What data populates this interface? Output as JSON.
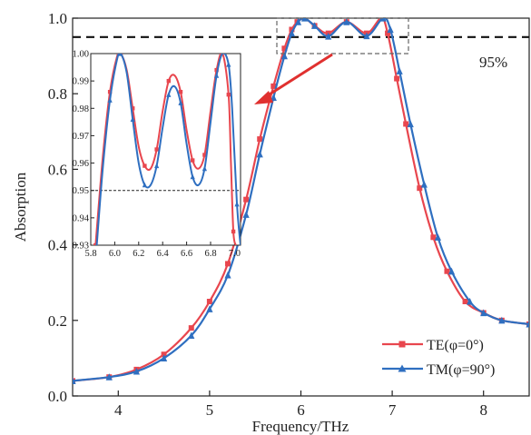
{
  "chart_data": {
    "type": "line",
    "xlabel": "Frequency/THz",
    "ylabel": "Absorption",
    "xlim": [
      3.5,
      8.5
    ],
    "ylim": [
      0.0,
      1.0
    ],
    "x_ticks": [
      "4",
      "5",
      "6",
      "7",
      "8"
    ],
    "y_ticks": [
      "0.0",
      "0.2",
      "0.4",
      "0.6",
      "0.8",
      "1.0"
    ],
    "threshold": {
      "value": 0.95,
      "label": "95%"
    },
    "legend_position": "bottom-right",
    "series": [
      {
        "name": "TE(φ=0°)",
        "color": "#e8464e",
        "marker": "square",
        "x": [
          3.5,
          3.9,
          4.2,
          4.5,
          4.8,
          5.0,
          5.2,
          5.4,
          5.55,
          5.7,
          5.82,
          5.9,
          5.96,
          6.04,
          6.15,
          6.3,
          6.5,
          6.72,
          6.88,
          6.95,
          7.05,
          7.15,
          7.3,
          7.45,
          7.6,
          7.8,
          8.0,
          8.2,
          8.5
        ],
        "y": [
          0.04,
          0.05,
          0.07,
          0.11,
          0.18,
          0.25,
          0.35,
          0.52,
          0.68,
          0.82,
          0.92,
          0.97,
          0.99,
          1.0,
          0.98,
          0.96,
          0.99,
          0.96,
          1.0,
          0.96,
          0.84,
          0.72,
          0.55,
          0.42,
          0.33,
          0.25,
          0.22,
          0.2,
          0.19
        ]
      },
      {
        "name": "TM(φ=90°)",
        "color": "#2f6fc0",
        "marker": "triangle",
        "x": [
          3.5,
          3.9,
          4.2,
          4.5,
          4.8,
          5.0,
          5.2,
          5.4,
          5.55,
          5.7,
          5.82,
          5.9,
          5.97,
          6.04,
          6.15,
          6.3,
          6.5,
          6.72,
          6.9,
          6.98,
          7.08,
          7.2,
          7.35,
          7.5,
          7.65,
          7.85,
          8.0,
          8.2,
          8.5
        ],
        "y": [
          0.04,
          0.05,
          0.065,
          0.1,
          0.16,
          0.23,
          0.32,
          0.48,
          0.64,
          0.79,
          0.9,
          0.96,
          0.99,
          1.0,
          0.98,
          0.952,
          0.99,
          0.953,
          1.0,
          0.97,
          0.86,
          0.72,
          0.56,
          0.42,
          0.33,
          0.25,
          0.22,
          0.2,
          0.19
        ]
      }
    ],
    "inset": {
      "xlim": [
        5.8,
        7.05
      ],
      "ylim": [
        0.93,
        1.0
      ],
      "x_ticks": [
        "5.8",
        "6.0",
        "6.2",
        "6.4",
        "6.6",
        "6.8",
        "7.0"
      ],
      "y_ticks": [
        "0.93",
        "0.94",
        "0.95",
        "0.96",
        "0.97",
        "0.98",
        "0.99",
        "1.00"
      ],
      "threshold": 0.95,
      "series": [
        {
          "name": "TE(φ=0°)",
          "x": [
            5.84,
            5.9,
            5.96,
            6.02,
            6.05,
            6.1,
            6.15,
            6.2,
            6.25,
            6.3,
            6.35,
            6.4,
            6.45,
            6.5,
            6.55,
            6.6,
            6.65,
            6.7,
            6.75,
            6.8,
            6.85,
            6.9,
            6.95,
            6.97,
            6.99,
            7.01
          ],
          "y": [
            0.93,
            0.962,
            0.986,
            0.999,
            1.0,
            0.994,
            0.98,
            0.966,
            0.959,
            0.958,
            0.965,
            0.979,
            0.99,
            0.992,
            0.986,
            0.972,
            0.961,
            0.958,
            0.963,
            0.979,
            0.994,
            1.0,
            0.985,
            0.96,
            0.935,
            0.93
          ]
        },
        {
          "name": "TM(φ=90°)",
          "x": [
            5.85,
            5.9,
            5.96,
            6.02,
            6.05,
            6.1,
            6.15,
            6.2,
            6.25,
            6.3,
            6.35,
            6.4,
            6.45,
            6.5,
            6.55,
            6.6,
            6.65,
            6.7,
            6.75,
            6.8,
            6.85,
            6.9,
            6.95,
            6.98,
            7.02,
            7.05
          ],
          "y": [
            0.93,
            0.958,
            0.983,
            0.998,
            1.0,
            0.993,
            0.976,
            0.96,
            0.952,
            0.952,
            0.959,
            0.973,
            0.985,
            0.988,
            0.982,
            0.967,
            0.955,
            0.952,
            0.958,
            0.975,
            0.992,
            1.0,
            0.996,
            0.98,
            0.945,
            0.93
          ]
        }
      ]
    }
  }
}
